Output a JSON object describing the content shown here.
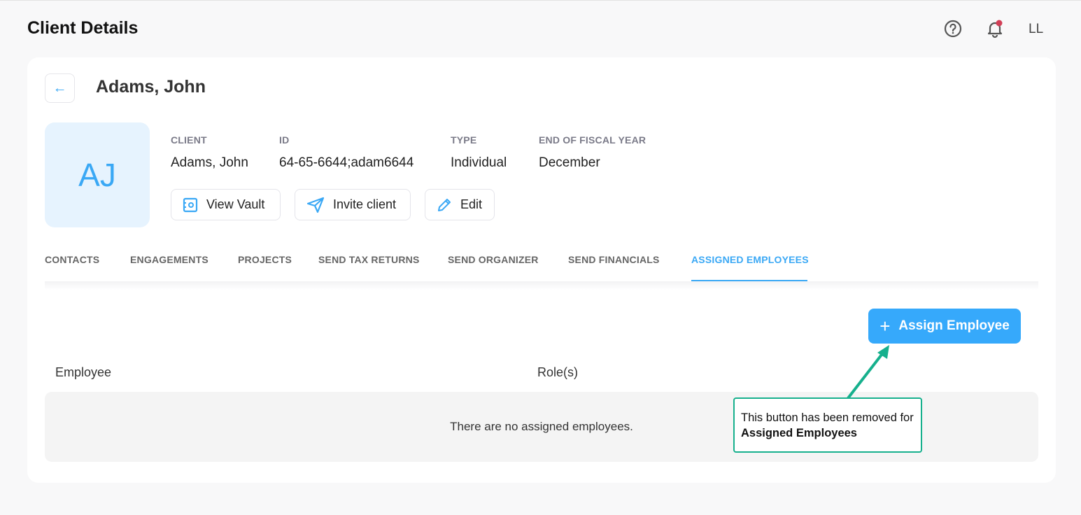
{
  "header": {
    "title": "Client Details",
    "user_initials": "LL",
    "icons": [
      "help-circle-icon",
      "bell-icon"
    ],
    "notification_dot_color": "#d23f57"
  },
  "client": {
    "name": "Adams, John",
    "initials": "AJ",
    "fields": [
      {
        "label": "CLIENT",
        "value": "Adams, John"
      },
      {
        "label": "ID",
        "value": "64-65-6644;adam6644"
      },
      {
        "label": "TYPE",
        "value": "Individual"
      },
      {
        "label": "END OF FISCAL YEAR",
        "value": "December"
      }
    ],
    "actions": {
      "view_vault": "View Vault",
      "invite_client": "Invite client",
      "edit": "Edit"
    }
  },
  "tabs": [
    {
      "label": "CONTACTS"
    },
    {
      "label": "ENGAGEMENTS"
    },
    {
      "label": "PROJECTS"
    },
    {
      "label": "SEND TAX RETURNS"
    },
    {
      "label": "SEND ORGANIZER"
    },
    {
      "label": "SEND FINANCIALS"
    },
    {
      "label": "ASSIGNED EMPLOYEES",
      "active": true
    }
  ],
  "assigned": {
    "assign_button": "Assign Employee",
    "columns": [
      "Employee",
      "Role(s)"
    ],
    "empty_text": "There are no assigned employees."
  },
  "annotation": {
    "text": "This button has been removed for ",
    "bold": "Assigned Employees",
    "color": "#16b08d"
  },
  "colors": {
    "accent": "#36a9fb"
  }
}
